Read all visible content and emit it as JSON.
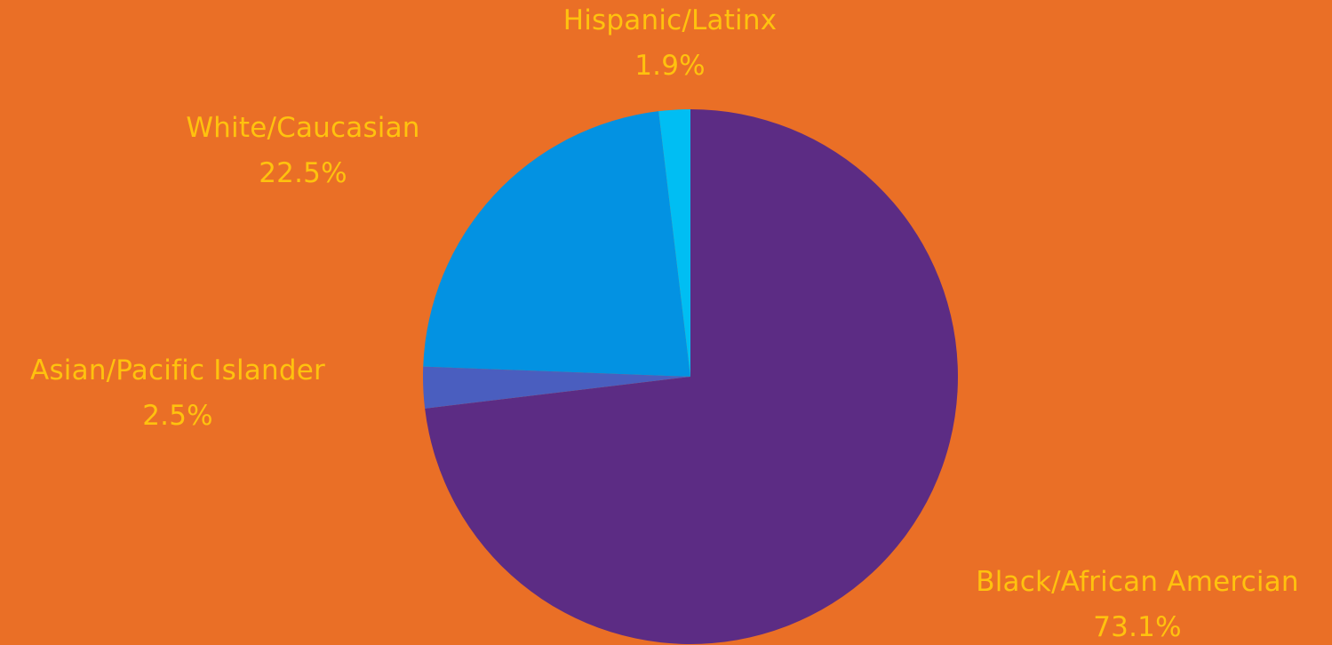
{
  "colors": {
    "background": "#EA6F26",
    "label_text": "#FFC20E"
  },
  "chart_data": {
    "type": "pie",
    "start_angle_deg": 0,
    "direction": "clockwise",
    "slices": [
      {
        "name": "Black/African Amercian",
        "label": "Black/African Amercian",
        "value_text": "73.1%",
        "value": 73.1,
        "color": "#5C2C84"
      },
      {
        "name": "Asian/Pacific Islander",
        "label": "Asian/Pacific Islander",
        "value_text": "2.5%",
        "value": 2.5,
        "color": "#4A5EBF"
      },
      {
        "name": "White/Caucasian",
        "label": "White/Caucasian",
        "value_text": "22.5%",
        "value": 22.5,
        "color": "#0392E2"
      },
      {
        "name": "Hispanic/Latinx",
        "label": "Hispanic/Latinx",
        "value_text": "1.9%",
        "value": 1.9,
        "color": "#00BEF3"
      }
    ]
  }
}
